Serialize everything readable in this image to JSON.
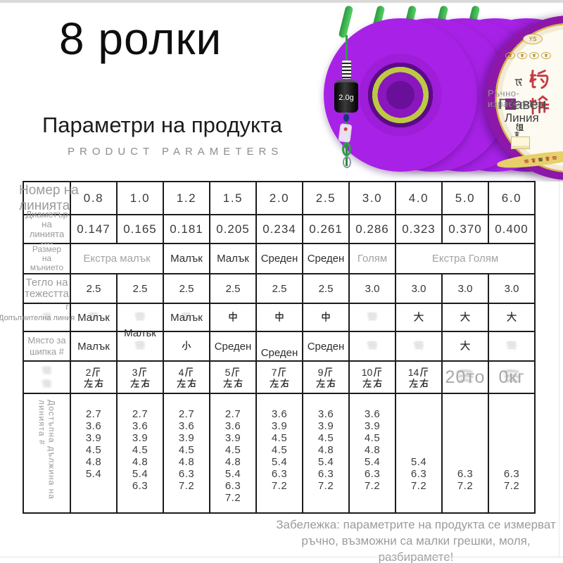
{
  "header": {
    "title": "8 ролки",
    "subtitle": "Параметри на продукта",
    "subtitle_en": "PRODUCT  PARAMETERS"
  },
  "note": {
    "line1": "Забележка: параметрите на продукта се измерват",
    "line2": "ръчно, възможни са малки грешки, моля, разбирамете!"
  },
  "product": {
    "spool_count": 5,
    "weight_label": "2.0g",
    "colors": {
      "purple": "#a722e6",
      "dark_purple": "#42076b",
      "coil_green": "#bcca41",
      "rig_green": "#2f9e44",
      "brand_red": "#c5303c",
      "gold": "#d9b24a"
    },
    "watermark": {
      "line1": "Ръчно-изработено",
      "line2": "Главен",
      "line3": "Линия"
    },
    "box_label": {
      "logo": "YS",
      "side_top": "成",
      "side_bottom": "组",
      "brand_vertical": "钓愉"
    }
  },
  "table": {
    "row_labels": {
      "line_no": [
        "Номер на",
        "линията"
      ],
      "diameter": [
        "Диаметър",
        "на линията",
        "мм"
      ],
      "size": [
        "Размер",
        "на",
        "мънието"
      ],
      "weight": [
        "Тегло на",
        "тежестта"
      ],
      "weight_unit": "г",
      "extra": "Допълнителна линия",
      "spike": [
        "Място за",
        "шипка #"
      ],
      "length": "Достъпна дължина на линията #"
    },
    "line_numbers": [
      "0.8",
      "1.0",
      "1.2",
      "1.5",
      "2.0",
      "2.5",
      "3.0",
      "4.0",
      "5.0",
      "6.0"
    ],
    "diameters": [
      "0.147",
      "0.165",
      "0.181",
      "0.205",
      "0.234",
      "0.261",
      "0.286",
      "0.323",
      "0.370",
      "0.400"
    ],
    "sizes": [
      {
        "text": "Екстра малък",
        "span": 2,
        "muted": true
      },
      {
        "text": "Малък",
        "span": 1,
        "muted": false
      },
      {
        "text": "Малък",
        "span": 1,
        "muted": false
      },
      {
        "text": "Среден",
        "span": 1,
        "muted": false
      },
      {
        "text": "Среден",
        "span": 1,
        "muted": false
      },
      {
        "text": "Голям",
        "span": 1,
        "muted": true
      },
      {
        "text": "Екстра Голям",
        "span": 3,
        "muted": true
      }
    ],
    "weights": [
      "2.5",
      "2.5",
      "2.5",
      "2.5",
      "2.5",
      "2.5",
      "3.0",
      "3.0",
      "3.0",
      "3.0"
    ],
    "extra_line": [
      {
        "text": "Малък",
        "ghost": true
      },
      {
        "text": "Малък",
        "ghost": true,
        "low": true
      },
      {
        "text": "Малък",
        "ghost": true
      },
      {
        "text": "中"
      },
      {
        "text": "中"
      },
      {
        "text": "中"
      },
      {
        "text": "",
        "ghost": true
      },
      {
        "text": "大"
      },
      {
        "text": "大"
      },
      {
        "text": "大"
      }
    ],
    "spike_place": [
      {
        "text": "Малък"
      },
      {
        "text": "",
        "ghost": true
      },
      {
        "text": "小"
      },
      {
        "text": "Среден"
      },
      {
        "text": "Среден",
        "low2": true
      },
      {
        "text": "Среден"
      },
      {
        "text": "",
        "ghost": true
      },
      {
        "text": "",
        "ghost": true
      },
      {
        "text": "大"
      },
      {
        "text": "",
        "ghost": true
      }
    ],
    "pull": [
      {
        "top": "2斤",
        "bottom": "左右"
      },
      {
        "top": "3斤",
        "bottom": "左右"
      },
      {
        "top": "4斤",
        "bottom": "左右"
      },
      {
        "top": "5斤",
        "bottom": "左右"
      },
      {
        "top": "7斤",
        "bottom": "左右"
      },
      {
        "top": "9斤",
        "bottom": "左右"
      },
      {
        "top": "10斤",
        "bottom": "左右"
      },
      {
        "top": "14斤",
        "bottom": "左右"
      },
      {
        "text": "20то",
        "ghost": true
      },
      {
        "text": "0кг",
        "ghost": true
      }
    ],
    "lengths": [
      [
        "2.7",
        "3.6",
        "3.9",
        "4.5",
        "4.8",
        "5.4",
        "",
        ""
      ],
      [
        "2.7",
        "3.6",
        "3.9",
        "4.5",
        "4.8",
        "5.4",
        "6.3",
        ""
      ],
      [
        "2.7",
        "3.6",
        "3.9",
        "4.5",
        "4.8",
        "6.3",
        "7.2",
        ""
      ],
      [
        "2.7",
        "3.6",
        "3.9",
        "4.5",
        "4.8",
        "5.4",
        "6.3",
        "7.2"
      ],
      [
        "3.6",
        "3.9",
        "4.5",
        "4.5",
        "5.4",
        "6.3",
        "7.2",
        ""
      ],
      [
        "3.6",
        "3.9",
        "4.5",
        "4.8",
        "5.4",
        "6.3",
        "7.2",
        ""
      ],
      [
        "3.6",
        "3.9",
        "4.5",
        "4.8",
        "5.4",
        "6.3",
        "7.2",
        ""
      ],
      [
        "",
        "",
        "",
        "",
        "5.4",
        "6.3",
        "7.2",
        ""
      ],
      [
        "",
        "",
        "",
        "",
        "",
        "6.3",
        "7.2",
        ""
      ],
      [
        "",
        "",
        "",
        "",
        "",
        "6.3",
        "7.2",
        ""
      ]
    ]
  }
}
